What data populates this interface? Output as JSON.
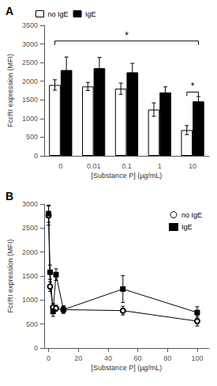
{
  "chart_data": [
    {
      "type": "bar",
      "title": "A",
      "categories": [
        "0",
        "0.01",
        "0.1",
        "1",
        "10"
      ],
      "series": [
        {
          "name": "no IgE",
          "color": "white",
          "values": [
            1900,
            1860,
            1800,
            1240,
            690
          ],
          "errors": [
            140,
            110,
            150,
            180,
            120
          ]
        },
        {
          "name": "IgE",
          "color": "black",
          "values": [
            2300,
            2350,
            2240,
            1700,
            1460
          ],
          "errors": [
            350,
            290,
            240,
            150,
            130
          ]
        }
      ],
      "xlabel": "[Substance P] (µg/mL)",
      "ylabel": "FcεRI expression (MFI)",
      "ylim": [
        0,
        3500
      ],
      "yticks": [
        0,
        500,
        1000,
        1500,
        2000,
        2500,
        3000,
        3500
      ],
      "legend": "upper left",
      "grid": false,
      "annotations": [
        {
          "text": "*",
          "from": {
            "category": "0",
            "series": "no IgE"
          },
          "to": {
            "category": "10",
            "series": "IgE"
          },
          "y": 3080
        },
        {
          "text": "*",
          "from": {
            "category": "10",
            "series": "no IgE"
          },
          "to": {
            "category": "10",
            "series": "IgE"
          },
          "y": 1710
        }
      ]
    },
    {
      "type": "line",
      "title": "B",
      "x": [
        0,
        1,
        3,
        5,
        10,
        50,
        100
      ],
      "series": [
        {
          "name": "no IgE",
          "color": "black",
          "marker": "open_circle",
          "values": [
            2760,
            1280,
            850,
            830,
            800,
            780,
            560
          ],
          "errors": [
            200,
            100,
            80,
            60,
            60,
            90,
            100
          ]
        },
        {
          "name": "IgE",
          "color": "black",
          "marker": "square",
          "values": [
            2800,
            1580,
            760,
            1530,
            800,
            1230,
            740
          ],
          "errors": [
            180,
            150,
            100,
            120,
            80,
            280,
            120
          ]
        }
      ],
      "xlabel": "[Substance P] (µg/mL)",
      "ylabel": "FcεRI expression (MFI)",
      "xlim": [
        -3,
        108
      ],
      "xticks": [
        0,
        20,
        40,
        60,
        80,
        100
      ],
      "ylim": [
        0,
        3000
      ],
      "yticks": [
        0,
        500,
        1000,
        1500,
        2000,
        2500,
        3000
      ],
      "legend": "upper right",
      "grid": false
    }
  ]
}
